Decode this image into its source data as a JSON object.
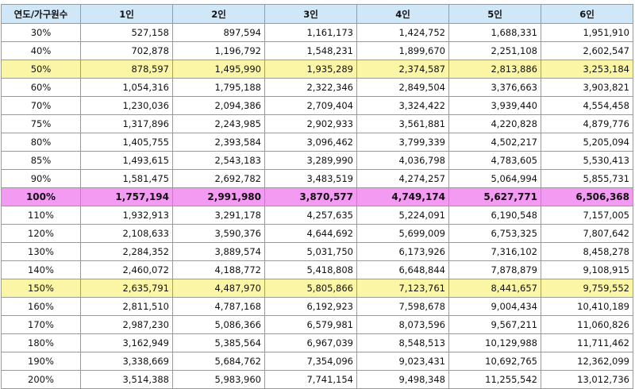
{
  "table": {
    "headers": [
      "연도/가구원수",
      "1인",
      "2인",
      "3인",
      "4인",
      "5인",
      "6인"
    ],
    "rows": [
      {
        "pct": "30%",
        "values": [
          "527,158",
          "897,594",
          "1,161,173",
          "1,424,752",
          "1,688,331",
          "1,951,910"
        ],
        "highlight": "none"
      },
      {
        "pct": "40%",
        "values": [
          "702,878",
          "1,196,792",
          "1,548,231",
          "1,899,670",
          "2,251,108",
          "2,602,547"
        ],
        "highlight": "none"
      },
      {
        "pct": "50%",
        "values": [
          "878,597",
          "1,495,990",
          "1,935,289",
          "2,374,587",
          "2,813,886",
          "3,253,184"
        ],
        "highlight": "yellow"
      },
      {
        "pct": "60%",
        "values": [
          "1,054,316",
          "1,795,188",
          "2,322,346",
          "2,849,504",
          "3,376,663",
          "3,903,821"
        ],
        "highlight": "none"
      },
      {
        "pct": "70%",
        "values": [
          "1,230,036",
          "2,094,386",
          "2,709,404",
          "3,324,422",
          "3,939,440",
          "4,554,458"
        ],
        "highlight": "none"
      },
      {
        "pct": "75%",
        "values": [
          "1,317,896",
          "2,243,985",
          "2,902,933",
          "3,561,881",
          "4,220,828",
          "4,879,776"
        ],
        "highlight": "none"
      },
      {
        "pct": "80%",
        "values": [
          "1,405,755",
          "2,393,584",
          "3,096,462",
          "3,799,339",
          "4,502,217",
          "5,205,094"
        ],
        "highlight": "none"
      },
      {
        "pct": "85%",
        "values": [
          "1,493,615",
          "2,543,183",
          "3,289,990",
          "4,036,798",
          "4,783,605",
          "5,530,413"
        ],
        "highlight": "none"
      },
      {
        "pct": "90%",
        "values": [
          "1,581,475",
          "2,692,782",
          "3,483,519",
          "4,274,257",
          "5,064,994",
          "5,855,731"
        ],
        "highlight": "none"
      },
      {
        "pct": "100%",
        "values": [
          "1,757,194",
          "2,991,980",
          "3,870,577",
          "4,749,174",
          "5,627,771",
          "6,506,368"
        ],
        "highlight": "pink"
      },
      {
        "pct": "110%",
        "values": [
          "1,932,913",
          "3,291,178",
          "4,257,635",
          "5,224,091",
          "6,190,548",
          "7,157,005"
        ],
        "highlight": "none"
      },
      {
        "pct": "120%",
        "values": [
          "2,108,633",
          "3,590,376",
          "4,644,692",
          "5,699,009",
          "6,753,325",
          "7,807,642"
        ],
        "highlight": "none"
      },
      {
        "pct": "130%",
        "values": [
          "2,284,352",
          "3,889,574",
          "5,031,750",
          "6,173,926",
          "7,316,102",
          "8,458,278"
        ],
        "highlight": "none"
      },
      {
        "pct": "140%",
        "values": [
          "2,460,072",
          "4,188,772",
          "5,418,808",
          "6,648,844",
          "7,878,879",
          "9,108,915"
        ],
        "highlight": "none"
      },
      {
        "pct": "150%",
        "values": [
          "2,635,791",
          "4,487,970",
          "5,805,866",
          "7,123,761",
          "8,441,657",
          "9,759,552"
        ],
        "highlight": "yellow"
      },
      {
        "pct": "160%",
        "values": [
          "2,811,510",
          "4,787,168",
          "6,192,923",
          "7,598,678",
          "9,004,434",
          "10,410,189"
        ],
        "highlight": "none"
      },
      {
        "pct": "170%",
        "values": [
          "2,987,230",
          "5,086,366",
          "6,579,981",
          "8,073,596",
          "9,567,211",
          "11,060,826"
        ],
        "highlight": "none"
      },
      {
        "pct": "180%",
        "values": [
          "3,162,949",
          "5,385,564",
          "6,967,039",
          "8,548,513",
          "10,129,988",
          "11,711,462"
        ],
        "highlight": "none"
      },
      {
        "pct": "190%",
        "values": [
          "3,338,669",
          "5,684,762",
          "7,354,096",
          "9,023,431",
          "10,692,765",
          "12,362,099"
        ],
        "highlight": "none"
      },
      {
        "pct": "200%",
        "values": [
          "3,514,388",
          "5,983,960",
          "7,741,154",
          "9,498,348",
          "11,255,542",
          "13,012,736"
        ],
        "highlight": "none"
      }
    ]
  },
  "colors": {
    "header_bg": "#cfe7f7",
    "highlight_yellow": "#fbf5a6",
    "highlight_pink": "#f39af3",
    "border": "#9a9a9a"
  }
}
